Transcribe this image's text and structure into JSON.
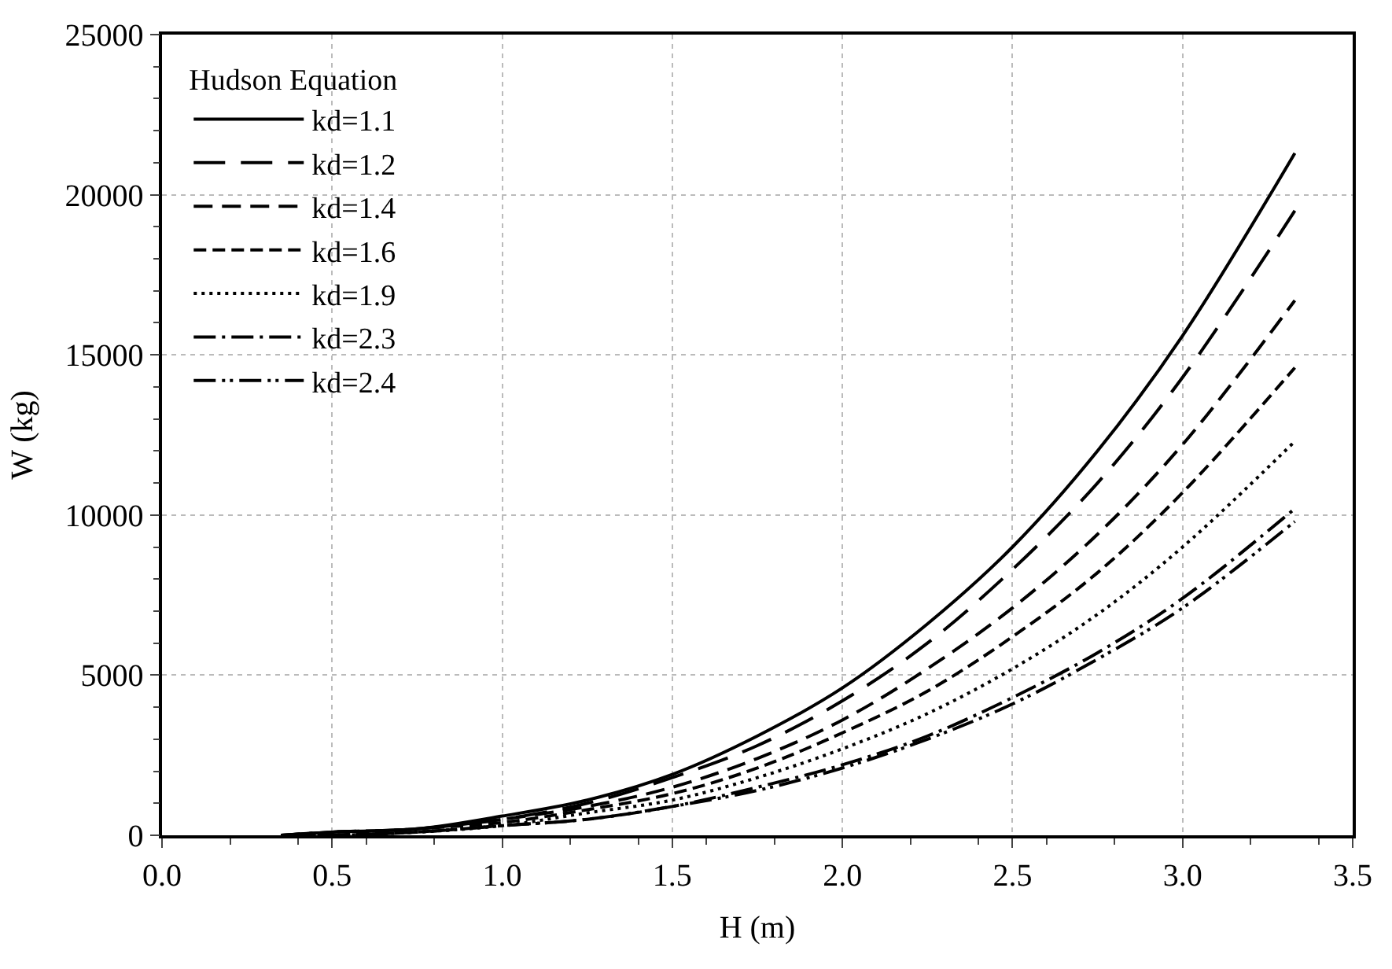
{
  "chart_data": {
    "type": "line",
    "xlabel": "H (m)",
    "ylabel": "W (kg)",
    "legend_title": "Hudson Equation",
    "legend": "top left",
    "grid": true,
    "marker": "none",
    "x": [
      0.35,
      0.5,
      0.75,
      1.0,
      1.25,
      1.5,
      1.75,
      2.0,
      2.25,
      2.5,
      2.75,
      3.0,
      3.33
    ],
    "xlim": [
      0,
      3.5
    ],
    "xticks": [
      {
        "value": 0,
        "label": "0.0"
      },
      0.5,
      {
        "value": 1,
        "label": "1.0"
      },
      1.5,
      {
        "value": 2,
        "label": "2.0"
      },
      2.5,
      {
        "value": 3,
        "label": "3.0"
      },
      3.5
    ],
    "ylim": [
      0,
      25000
    ],
    "yticks": [
      0,
      5000,
      10000,
      15000,
      20000,
      25000
    ],
    "series": [
      {
        "name": "kd=1.1",
        "color": "#000000",
        "line_style": "solid",
        "values": [
          0,
          100,
          200,
          600,
          1100,
          1900,
          3100,
          4600,
          6600,
          9000,
          12000,
          15600,
          21300
        ]
      },
      {
        "name": "kd=1.2",
        "color": "#000000",
        "line_style": "longdash",
        "values": [
          0,
          100,
          200,
          500,
          1000,
          1800,
          2800,
          4200,
          6000,
          8300,
          11000,
          14300,
          19500
        ]
      },
      {
        "name": "kd=1.4",
        "color": "#000000",
        "line_style": "dashed",
        "values": [
          0,
          100,
          200,
          500,
          900,
          1500,
          2400,
          3600,
          5200,
          7100,
          9400,
          12200,
          16700
        ]
      },
      {
        "name": "kd=1.6",
        "color": "#000000",
        "line_style": "shortdash",
        "values": [
          0,
          0,
          200,
          400,
          800,
          1300,
          2100,
          3200,
          4500,
          6200,
          8200,
          10700,
          14600
        ]
      },
      {
        "name": "kd=1.9",
        "color": "#000000",
        "line_style": "dotted",
        "values": [
          0,
          0,
          100,
          300,
          700,
          1100,
          1800,
          2700,
          3800,
          5200,
          6900,
          9000,
          12300
        ]
      },
      {
        "name": "kd=2.3",
        "color": "#000000",
        "line_style": "dashdot",
        "values": [
          0,
          0,
          100,
          300,
          500,
          900,
          1500,
          2200,
          3100,
          4300,
          5700,
          7400,
          10200
        ]
      },
      {
        "name": "kd=2.4",
        "color": "#000000",
        "line_style": "dashdotdot",
        "values": [
          0,
          0,
          100,
          300,
          500,
          900,
          1400,
          2100,
          3000,
          4100,
          5500,
          7100,
          9800
        ]
      }
    ]
  }
}
